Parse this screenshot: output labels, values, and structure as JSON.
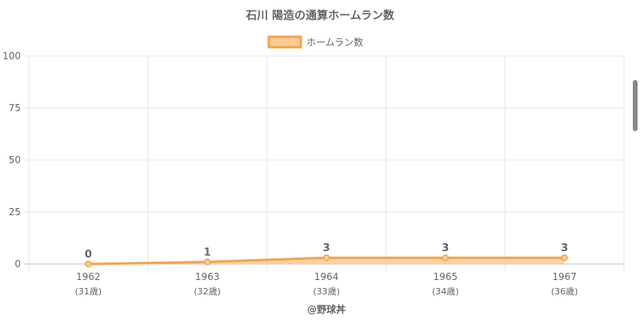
{
  "chart_data": {
    "type": "area",
    "title": "石川 陽造の通算ホームラン数",
    "categories": [
      "1962",
      "1963",
      "1964",
      "1965",
      "1967"
    ],
    "category_sublabels": [
      "(31歳)",
      "(32歳)",
      "(33歳)",
      "(34歳)",
      "(36歳)"
    ],
    "series": [
      {
        "name": "ホームラン数",
        "values": [
          0,
          1,
          3,
          3,
          3
        ]
      }
    ],
    "data_labels": [
      "0",
      "1",
      "3",
      "3",
      "3"
    ],
    "ylim": [
      0,
      100
    ],
    "yticks": [
      "0",
      "25",
      "50",
      "75",
      "100"
    ],
    "ytick_values": [
      0,
      25,
      50,
      75,
      100
    ],
    "xlabel": "@野球丼",
    "ylabel": "",
    "legend_position": "top",
    "grid": true,
    "colors": {
      "line": "#f7a24b",
      "fill": "#fccb93",
      "grid": "#e5e5e5",
      "text": "#666666",
      "title": "#666666"
    }
  }
}
